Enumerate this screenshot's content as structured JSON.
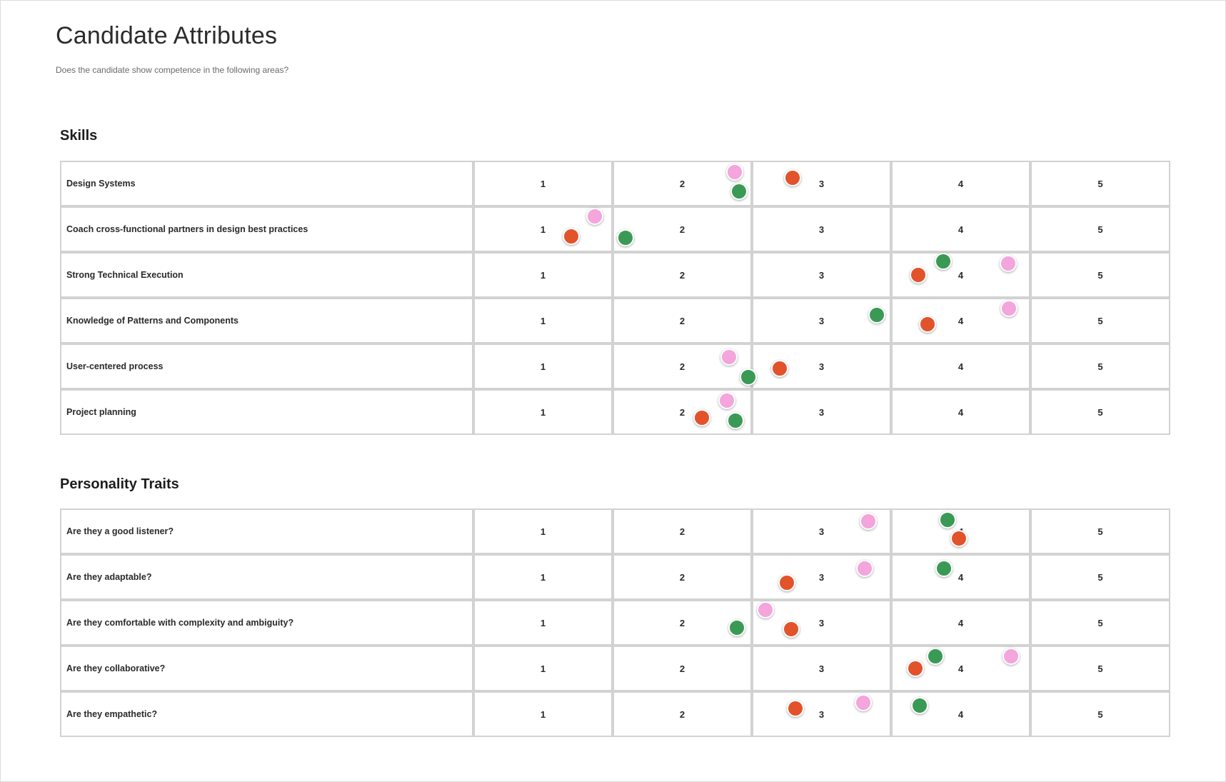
{
  "page": {
    "title": "Candidate Attributes",
    "subtitle": "Does the candidate show competence in the following areas?"
  },
  "scale": [
    "1",
    "2",
    "3",
    "4",
    "5"
  ],
  "sticker_colors": {
    "orange": "#e2532b",
    "green": "#3a9a55",
    "pink": "#f3a5dc"
  },
  "sections": [
    {
      "title": "Skills",
      "rows": [
        {
          "label": "Design Systems",
          "ratings": {
            "pink": 2,
            "green": 2,
            "orange": 3
          }
        },
        {
          "label": "Coach cross-functional partners in design best practices",
          "ratings": {
            "pink": 1,
            "orange": 1,
            "green": 2
          }
        },
        {
          "label": "Strong Technical Execution",
          "ratings": {
            "orange": 4,
            "green": 4,
            "pink": 4
          }
        },
        {
          "label": "Knowledge of Patterns and Components",
          "ratings": {
            "green": 3,
            "orange": 4,
            "pink": 4
          }
        },
        {
          "label": "User-centered process",
          "ratings": {
            "pink": 2,
            "green": 2,
            "orange": 3
          }
        },
        {
          "label": "Project planning",
          "ratings": {
            "orange": 2,
            "pink": 2,
            "green": 2
          }
        }
      ]
    },
    {
      "title": "Personality Traits",
      "rows": [
        {
          "label": "Are they a good listener?",
          "ratings": {
            "pink": 3,
            "green": 4,
            "orange": 4
          }
        },
        {
          "label": "Are they adaptable?",
          "ratings": {
            "orange": 3,
            "pink": 3,
            "green": 4
          }
        },
        {
          "label": "Are they comfortable with complexity and ambiguity?",
          "ratings": {
            "green": 2,
            "pink": 3,
            "orange": 3
          }
        },
        {
          "label": "Are they collaborative?",
          "ratings": {
            "orange": 4,
            "green": 4,
            "pink": 4
          }
        },
        {
          "label": "Are they empathetic?",
          "ratings": {
            "orange": 3,
            "pink": 3,
            "green": 4
          }
        }
      ]
    }
  ]
}
